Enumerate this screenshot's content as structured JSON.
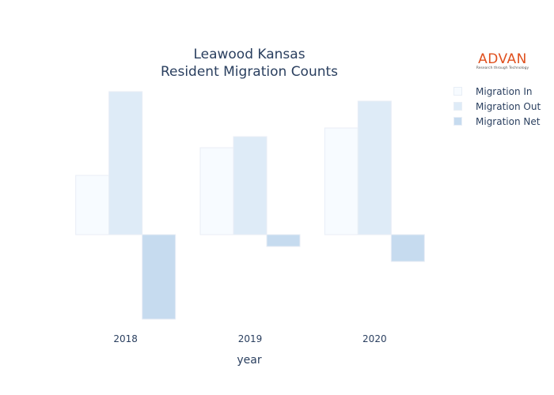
{
  "chart_data": {
    "type": "bar",
    "title_line1": "Leawood Kansas",
    "title_line2": "Resident Migration Counts",
    "xlabel": "year",
    "ylabel": "",
    "categories": [
      "2018",
      "2019",
      "2020"
    ],
    "series": [
      {
        "name": "Migration In",
        "color": "#f7fbff",
        "values": [
          75,
          110,
          135
        ]
      },
      {
        "name": "Migration Out",
        "color": "#deebf7",
        "values": [
          181,
          124,
          169
        ]
      },
      {
        "name": "Migration Net",
        "color": "#c6dbef",
        "values": [
          -107,
          -15,
          -34
        ]
      }
    ],
    "ylim": [
      -115,
      190
    ],
    "grid": false,
    "legend_position": "right"
  },
  "logo": {
    "name": "ADVAN",
    "tagline": "Research through Technology"
  }
}
